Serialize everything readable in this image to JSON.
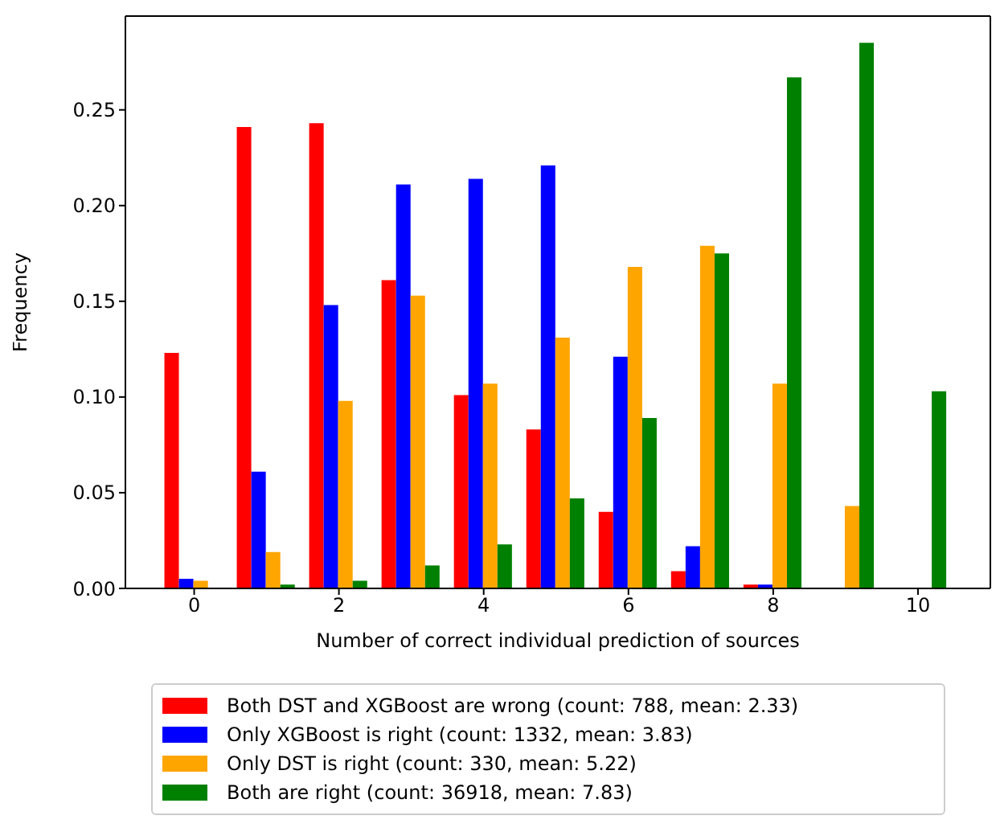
{
  "chart_data": {
    "type": "bar",
    "xlabel": "Number of correct individual prediction of sources",
    "ylabel": "Frequency",
    "x": [
      0,
      1,
      2,
      3,
      4,
      5,
      6,
      7,
      8,
      9,
      10
    ],
    "series": [
      {
        "name": "Both DST and XGBoost are wrong (count: 788, mean: 2.33)",
        "color": "#ff0000",
        "values": [
          0.123,
          0.241,
          0.243,
          0.161,
          0.101,
          0.083,
          0.04,
          0.009,
          0.002,
          0,
          0
        ]
      },
      {
        "name": "Only XGBoost is right (count: 1332, mean: 3.83)",
        "color": "#0000ff",
        "values": [
          0.005,
          0.061,
          0.148,
          0.211,
          0.214,
          0.221,
          0.121,
          0.022,
          0.002,
          0,
          0
        ]
      },
      {
        "name": "Only DST is right (count: 330, mean: 5.22)",
        "color": "#ffa500",
        "values": [
          0.004,
          0.019,
          0.098,
          0.153,
          0.107,
          0.131,
          0.168,
          0.179,
          0.107,
          0.043,
          0
        ]
      },
      {
        "name": "Both are right (count: 36918, mean: 7.83)",
        "color": "#008000",
        "values": [
          0,
          0.002,
          0.004,
          0.012,
          0.023,
          0.047,
          0.089,
          0.175,
          0.267,
          0.285,
          0.103
        ]
      }
    ],
    "xlim": [
      -0.95,
      11
    ],
    "xticks": [
      0,
      2,
      4,
      6,
      8,
      10
    ],
    "ylim": [
      0,
      0.299
    ],
    "yticks": [
      {
        "value": 0,
        "label": "0.00"
      },
      {
        "value": 0.05,
        "label": "0.05"
      },
      {
        "value": 0.1,
        "label": "0.10"
      },
      {
        "value": 0.15,
        "label": "0.15"
      },
      {
        "value": 0.2,
        "label": "0.20"
      },
      {
        "value": 0.25,
        "label": "0.25"
      }
    ],
    "grid": false,
    "legend": "bottom"
  }
}
